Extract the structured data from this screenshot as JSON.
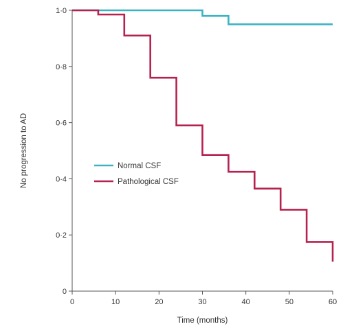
{
  "chart_data": {
    "type": "line",
    "step": true,
    "title": "",
    "xlabel": "Time (months)",
    "ylabel": "No progression to AD",
    "xlim": [
      0,
      60
    ],
    "ylim": [
      0,
      1.0
    ],
    "x_ticks": [
      0,
      10,
      20,
      30,
      40,
      50,
      60
    ],
    "x_tick_labels": [
      "0",
      "10",
      "20",
      "30",
      "40",
      "50",
      "60"
    ],
    "y_ticks": [
      0,
      0.2,
      0.4,
      0.6,
      0.8,
      1.0
    ],
    "y_tick_labels": [
      "0",
      "0·2",
      "0·4",
      "0·6",
      "0·8",
      "1·0"
    ],
    "grid": false,
    "legend_position": "center-left",
    "series": [
      {
        "name": "Normal CSF",
        "color": "#3bb3c3",
        "x": [
          0,
          30,
          30,
          36,
          36,
          60
        ],
        "y": [
          1.0,
          1.0,
          0.98,
          0.98,
          0.95,
          0.95
        ]
      },
      {
        "name": "Pathological CSF",
        "color": "#b5224f",
        "x": [
          0,
          6,
          6,
          12,
          12,
          18,
          18,
          24,
          24,
          30,
          30,
          36,
          36,
          42,
          42,
          48,
          48,
          54,
          54,
          60,
          60
        ],
        "y": [
          1.0,
          1.0,
          0.985,
          0.985,
          0.91,
          0.91,
          0.76,
          0.76,
          0.59,
          0.59,
          0.485,
          0.485,
          0.425,
          0.425,
          0.365,
          0.365,
          0.29,
          0.29,
          0.175,
          0.175,
          0.105
        ]
      }
    ]
  }
}
